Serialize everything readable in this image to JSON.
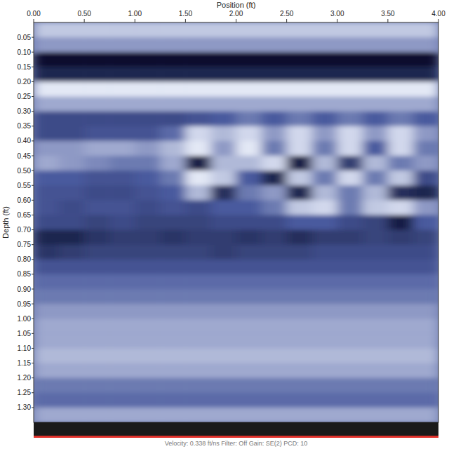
{
  "chart_data": {
    "type": "heatmap",
    "x_label": "Position (ft)",
    "y_label": "Depth (ft)",
    "footer": "Velocity: 0.338 ft/ns   Filter: Off   Gain: SE(2)   PCD: 10",
    "xlim": [
      0,
      4
    ],
    "ylim": [
      0,
      1.35
    ],
    "xticks": [
      {
        "value": 0,
        "label": "0.00"
      },
      {
        "value": 0.5,
        "label": "0.50"
      },
      {
        "value": 1,
        "label": "1.00"
      },
      {
        "value": 1.5,
        "label": "1.50"
      },
      {
        "value": 2,
        "label": "2.00"
      },
      {
        "value": 2.5,
        "label": "2.50"
      },
      {
        "value": 3,
        "label": "3.00"
      },
      {
        "value": 3.5,
        "label": "3.50"
      },
      {
        "value": 4,
        "label": "4.00"
      }
    ],
    "yticks": [
      {
        "value": 0.05,
        "label": "0.05"
      },
      {
        "value": 0.1,
        "label": "0.10"
      },
      {
        "value": 0.15,
        "label": "0.15"
      },
      {
        "value": 0.2,
        "label": "0.20"
      },
      {
        "value": 0.25,
        "label": "0.25"
      },
      {
        "value": 0.3,
        "label": "0.30"
      },
      {
        "value": 0.35,
        "label": "0.35"
      },
      {
        "value": 0.4,
        "label": "0.40"
      },
      {
        "value": 0.45,
        "label": "0.45"
      },
      {
        "value": 0.5,
        "label": "0.50"
      },
      {
        "value": 0.55,
        "label": "0.55"
      },
      {
        "value": 0.6,
        "label": "0.60"
      },
      {
        "value": 0.65,
        "label": "0.65"
      },
      {
        "value": 0.7,
        "label": "0.70"
      },
      {
        "value": 0.75,
        "label": "0.75"
      },
      {
        "value": 0.8,
        "label": "0.80"
      },
      {
        "value": 0.85,
        "label": "0.85"
      },
      {
        "value": 0.9,
        "label": "0.90"
      },
      {
        "value": 0.95,
        "label": "0.95"
      },
      {
        "value": 1,
        "label": "1.00"
      },
      {
        "value": 1.05,
        "label": "1.05"
      },
      {
        "value": 1.1,
        "label": "1.10"
      },
      {
        "value": 1.15,
        "label": "1.15"
      },
      {
        "value": 1.2,
        "label": "1.20"
      },
      {
        "value": 1.25,
        "label": "1.25"
      },
      {
        "value": 1.3,
        "label": "1.30"
      }
    ],
    "cells": [
      [
        0.85,
        0.85,
        0.85,
        0.85,
        0.85,
        0.85,
        0.85,
        0.85,
        0.85,
        0.85,
        0.85,
        0.85,
        0.85,
        0.85,
        0.85,
        0.85
      ],
      [
        0.7,
        0.7,
        0.7,
        0.7,
        0.7,
        0.7,
        0.7,
        0.7,
        0.7,
        0.7,
        0.7,
        0.7,
        0.7,
        0.7,
        0.7,
        0.7
      ],
      [
        0,
        0,
        0,
        0,
        0,
        0,
        0,
        0,
        0,
        0,
        0,
        0,
        0,
        0,
        0,
        0
      ],
      [
        0.15,
        0.15,
        0.15,
        0.15,
        0.15,
        0.15,
        0.15,
        0.15,
        0.15,
        0.15,
        0.15,
        0.15,
        0.15,
        0.15,
        0.15,
        0.15
      ],
      [
        0.95,
        0.95,
        0.95,
        0.95,
        0.95,
        0.95,
        0.95,
        0.95,
        0.95,
        0.95,
        0.95,
        0.95,
        0.95,
        0.95,
        0.95,
        0.95
      ],
      [
        0.75,
        0.75,
        0.75,
        0.75,
        0.75,
        0.75,
        0.75,
        0.75,
        0.75,
        0.75,
        0.75,
        0.75,
        0.75,
        0.75,
        0.75,
        0.75
      ],
      [
        0.4,
        0.4,
        0.4,
        0.4,
        0.4,
        0.4,
        0.45,
        0.5,
        0.6,
        0.5,
        0.6,
        0.5,
        0.6,
        0.5,
        0.6,
        0.5
      ],
      [
        0.4,
        0.4,
        0.45,
        0.45,
        0.45,
        0.55,
        0.9,
        0.8,
        0.9,
        0.7,
        0.9,
        0.7,
        0.9,
        0.7,
        0.9,
        0.7
      ],
      [
        0.7,
        0.7,
        0.75,
        0.75,
        0.7,
        0.8,
        0.95,
        0.7,
        0.95,
        0.6,
        0.9,
        0.6,
        0.9,
        0.5,
        0.9,
        0.6
      ],
      [
        0.75,
        0.7,
        0.65,
        0.6,
        0.6,
        0.75,
        0.1,
        0.8,
        0.8,
        0.9,
        0.1,
        0.8,
        0.3,
        0.8,
        0.6,
        0.7
      ],
      [
        0.5,
        0.5,
        0.45,
        0.45,
        0.5,
        0.6,
        0.95,
        0.85,
        0.5,
        0.15,
        0.85,
        0.6,
        0.9,
        0.6,
        0.85,
        0.4
      ],
      [
        0.45,
        0.45,
        0.4,
        0.4,
        0.45,
        0.5,
        0.8,
        0.2,
        0.6,
        0.7,
        0.15,
        0.8,
        0.6,
        0.8,
        0.2,
        0.15
      ],
      [
        0.45,
        0.4,
        0.45,
        0.45,
        0.4,
        0.45,
        0.4,
        0.5,
        0.5,
        0.6,
        0.85,
        0.9,
        0.6,
        0.85,
        0.9,
        0.7
      ],
      [
        0.4,
        0.4,
        0.35,
        0.4,
        0.35,
        0.35,
        0.35,
        0.4,
        0.4,
        0.4,
        0.5,
        0.5,
        0.4,
        0.35,
        0.1,
        0.5
      ],
      [
        0.15,
        0.15,
        0.25,
        0.3,
        0.3,
        0.25,
        0.3,
        0.3,
        0.25,
        0.3,
        0.2,
        0.3,
        0.3,
        0.35,
        0.3,
        0.35
      ],
      [
        0.25,
        0.3,
        0.35,
        0.35,
        0.35,
        0.35,
        0.35,
        0.3,
        0.35,
        0.35,
        0.35,
        0.4,
        0.4,
        0.4,
        0.4,
        0.4
      ],
      [
        0.45,
        0.45,
        0.45,
        0.45,
        0.45,
        0.45,
        0.45,
        0.45,
        0.45,
        0.45,
        0.45,
        0.45,
        0.45,
        0.45,
        0.45,
        0.45
      ],
      [
        0.55,
        0.55,
        0.55,
        0.55,
        0.55,
        0.55,
        0.55,
        0.55,
        0.55,
        0.55,
        0.55,
        0.55,
        0.55,
        0.55,
        0.55,
        0.55
      ],
      [
        0.6,
        0.6,
        0.6,
        0.6,
        0.6,
        0.6,
        0.6,
        0.6,
        0.6,
        0.6,
        0.6,
        0.6,
        0.6,
        0.6,
        0.6,
        0.6
      ],
      [
        0.7,
        0.7,
        0.7,
        0.7,
        0.7,
        0.7,
        0.7,
        0.7,
        0.7,
        0.7,
        0.7,
        0.7,
        0.7,
        0.7,
        0.7,
        0.7
      ],
      [
        0.75,
        0.75,
        0.75,
        0.75,
        0.75,
        0.75,
        0.75,
        0.75,
        0.75,
        0.75,
        0.75,
        0.75,
        0.75,
        0.75,
        0.75,
        0.75
      ],
      [
        0.75,
        0.75,
        0.75,
        0.75,
        0.75,
        0.75,
        0.75,
        0.75,
        0.75,
        0.75,
        0.75,
        0.75,
        0.75,
        0.75,
        0.75,
        0.75
      ],
      [
        0.8,
        0.8,
        0.8,
        0.8,
        0.8,
        0.8,
        0.8,
        0.8,
        0.8,
        0.8,
        0.8,
        0.8,
        0.8,
        0.8,
        0.8,
        0.8
      ],
      [
        0.75,
        0.75,
        0.75,
        0.75,
        0.75,
        0.75,
        0.75,
        0.75,
        0.75,
        0.75,
        0.75,
        0.75,
        0.75,
        0.75,
        0.75,
        0.75
      ],
      [
        0.6,
        0.6,
        0.6,
        0.6,
        0.6,
        0.6,
        0.6,
        0.6,
        0.6,
        0.6,
        0.6,
        0.6,
        0.6,
        0.6,
        0.6,
        0.6
      ],
      [
        0.55,
        0.55,
        0.55,
        0.55,
        0.55,
        0.55,
        0.55,
        0.55,
        0.55,
        0.55,
        0.55,
        0.55,
        0.55,
        0.55,
        0.55,
        0.55
      ],
      [
        0.75,
        0.75,
        0.75,
        0.75,
        0.75,
        0.75,
        0.75,
        0.75,
        0.75,
        0.75,
        0.75,
        0.75,
        0.75,
        0.75,
        0.75,
        0.75
      ]
    ]
  }
}
